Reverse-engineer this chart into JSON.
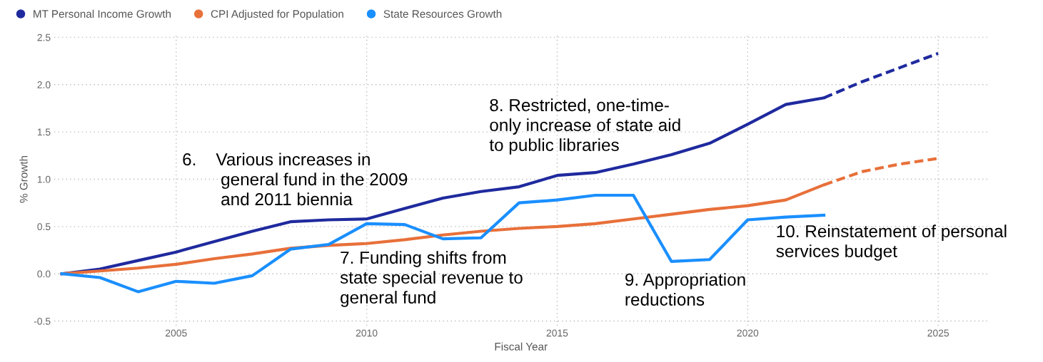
{
  "chart_data": {
    "type": "line",
    "xlabel": "Fiscal Year",
    "ylabel": "% Growth",
    "x": [
      2002,
      2003,
      2004,
      2005,
      2006,
      2007,
      2008,
      2009,
      2010,
      2011,
      2012,
      2013,
      2014,
      2015,
      2016,
      2017,
      2018,
      2019,
      2020,
      2021,
      2022
    ],
    "series": [
      {
        "name": "MT Personal Income Growth",
        "color": "#1f2a9e",
        "values": [
          0,
          0.05,
          0.14,
          0.23,
          0.34,
          0.45,
          0.55,
          0.57,
          0.58,
          0.69,
          0.8,
          0.87,
          0.92,
          1.04,
          1.07,
          1.16,
          1.26,
          1.38,
          1.58,
          1.79,
          1.86
        ]
      },
      {
        "name": "CPI Adjusted for Population",
        "color": "#e8703a",
        "values": [
          0,
          0.03,
          0.06,
          0.1,
          0.16,
          0.21,
          0.27,
          0.3,
          0.32,
          0.36,
          0.41,
          0.45,
          0.48,
          0.5,
          0.53,
          0.58,
          0.63,
          0.68,
          0.72,
          0.78,
          0.94
        ]
      },
      {
        "name": "State Resources Growth",
        "color": "#1a8fff",
        "values": [
          0,
          -0.04,
          -0.19,
          -0.08,
          -0.1,
          -0.02,
          0.26,
          0.31,
          0.53,
          0.52,
          0.37,
          0.38,
          0.75,
          0.78,
          0.83,
          0.83,
          0.13,
          0.15,
          0.57,
          0.6,
          0.62
        ]
      },
      {
        "color": "#1f2a9e",
        "line_style": "dashed",
        "x": [
          2022,
          2023,
          2024,
          2025
        ],
        "values": [
          1.86,
          2.03,
          2.18,
          2.33
        ]
      },
      {
        "color": "#e8703a",
        "line_style": "dashed",
        "x": [
          2022,
          2023,
          2024,
          2025
        ],
        "values": [
          0.94,
          1.08,
          1.16,
          1.22
        ]
      }
    ],
    "xlim": [
      2001.8,
      2026.3
    ],
    "xticks": [
      2005,
      2010,
      2015,
      2020,
      2025
    ],
    "ylim": [
      -0.55,
      2.55
    ],
    "yticks": [
      {
        "value": -0.5,
        "label": "-0.5"
      },
      {
        "value": 0,
        "label": "0.0"
      },
      {
        "value": 0.5,
        "label": "0.5"
      },
      {
        "value": 1,
        "label": "1.0"
      },
      {
        "value": 1.5,
        "label": "1.5"
      },
      {
        "value": 2,
        "label": "2.0"
      },
      {
        "value": 2.5,
        "label": "2.5"
      }
    ],
    "grid": true,
    "legend": "top left",
    "line_style": "solid",
    "marker": "none",
    "annotations": [
      "6.    Various increases in\n        general fund in the 2009\n        and 2011 biennia",
      "7. Funding shifts from\nstate special revenue to\ngeneral fund",
      "8. Restricted, one-time-\nonly increase of state aid\nto public libraries",
      "9. Appropriation\nreductions",
      "10. Reinstatement of personal\nservices budget"
    ]
  }
}
